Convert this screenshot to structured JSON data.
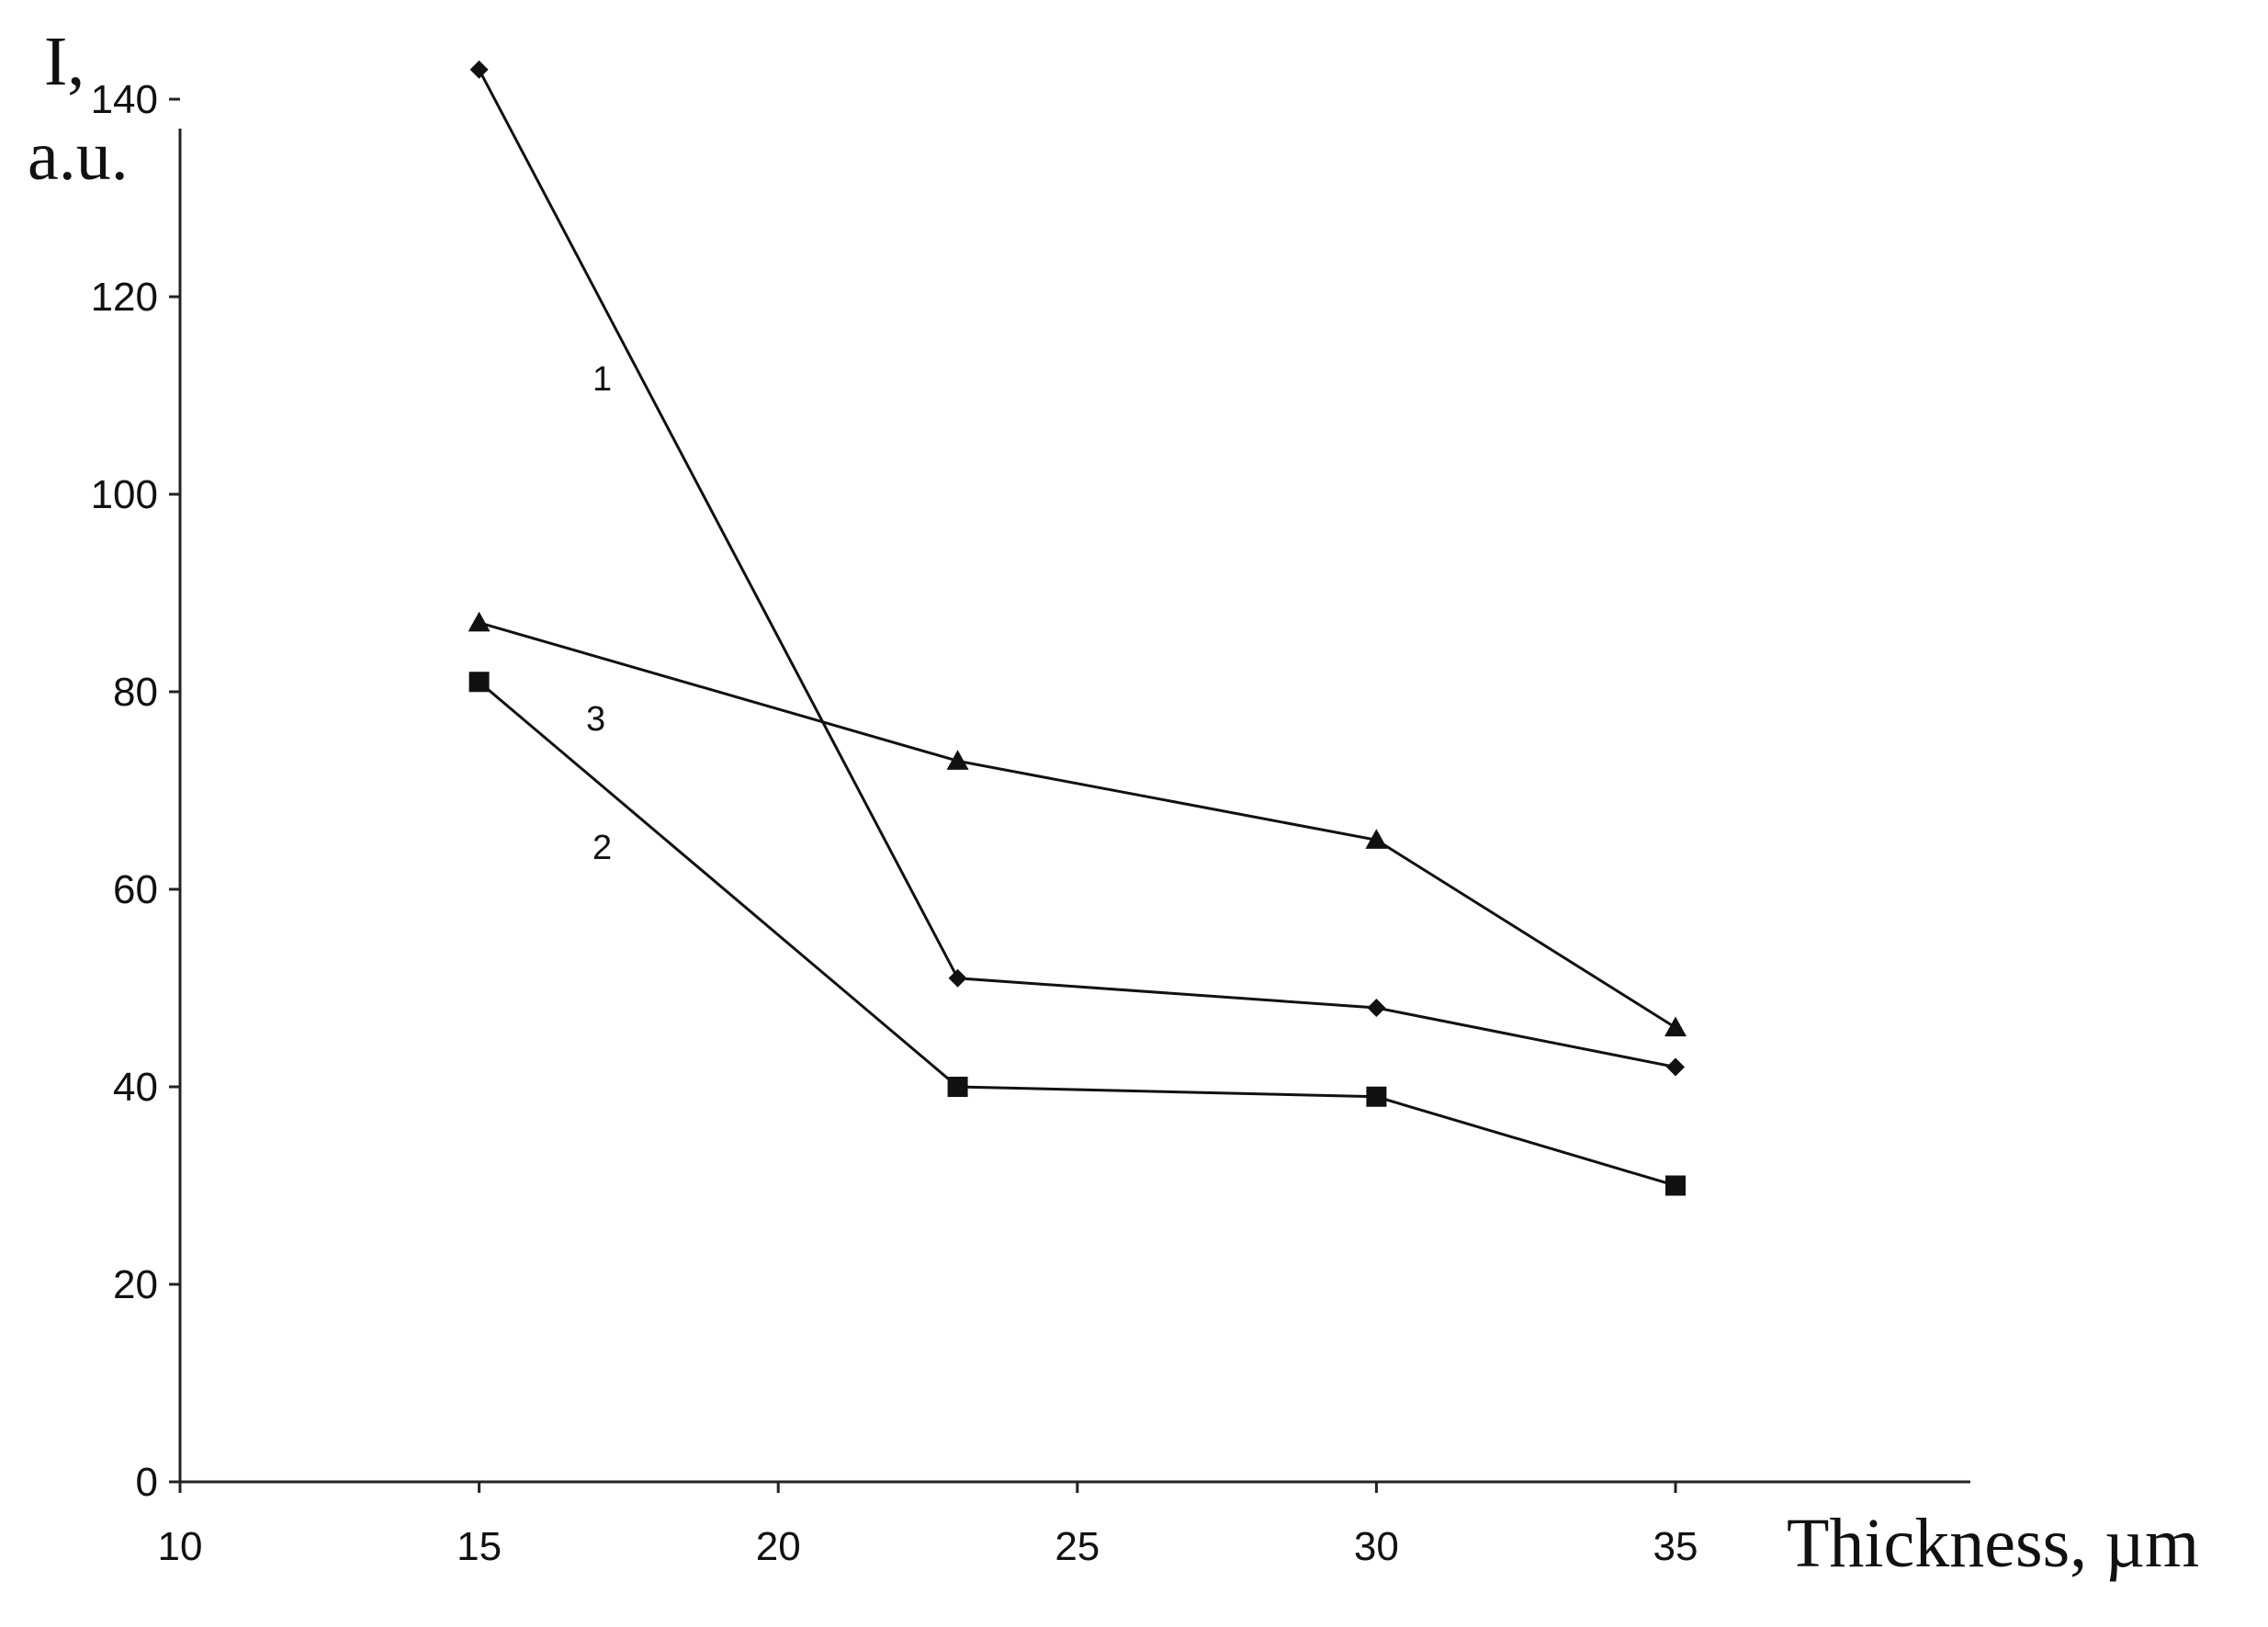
{
  "chart_data": {
    "type": "line",
    "xlabel": "Thickness, µm",
    "ylabel_line1": "I,",
    "ylabel_line2": "a.u.",
    "xlim": [
      10,
      40
    ],
    "ylim": [
      0,
      150
    ],
    "xticks": [
      10,
      15,
      20,
      25,
      30,
      35
    ],
    "yticks": [
      0,
      20,
      40,
      60,
      80,
      100,
      120,
      140
    ],
    "grid": false,
    "x": [
      15,
      23,
      30,
      35
    ],
    "series": [
      {
        "name": "1",
        "marker": "diamond",
        "values": [
          143,
          51,
          48,
          42
        ]
      },
      {
        "name": "2",
        "marker": "square",
        "values": [
          81,
          40,
          39,
          30
        ]
      },
      {
        "name": "3",
        "marker": "triangle",
        "values": [
          87,
          73,
          65,
          46
        ]
      }
    ]
  }
}
